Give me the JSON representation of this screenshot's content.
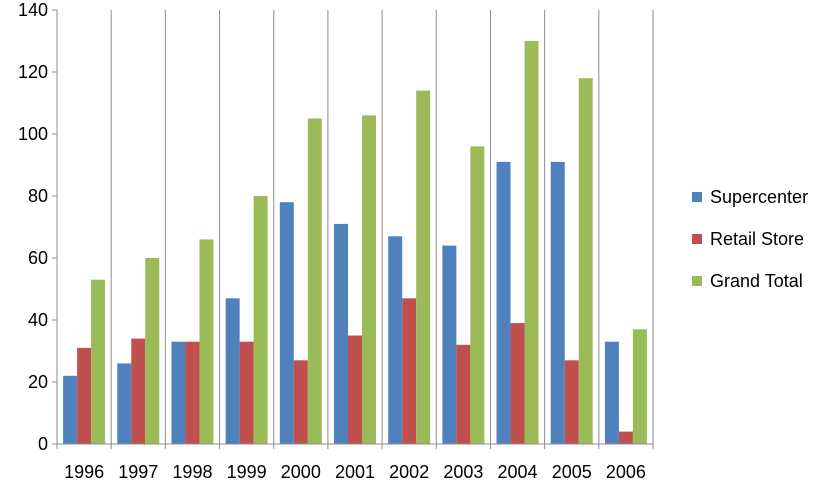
{
  "chart_data": {
    "type": "bar",
    "categories": [
      "1996",
      "1997",
      "1998",
      "1999",
      "2000",
      "2001",
      "2002",
      "2003",
      "2004",
      "2005",
      "2006"
    ],
    "series": [
      {
        "name": "Supercenter",
        "color": "#4F81BD",
        "values": [
          22,
          26,
          33,
          47,
          78,
          71,
          67,
          64,
          91,
          91,
          33
        ]
      },
      {
        "name": "Retail Store",
        "color": "#C0504D",
        "values": [
          31,
          34,
          33,
          33,
          27,
          35,
          47,
          32,
          39,
          27,
          4
        ]
      },
      {
        "name": "Grand Total",
        "color": "#9BBB59",
        "values": [
          53,
          60,
          66,
          80,
          105,
          106,
          114,
          96,
          130,
          118,
          37
        ]
      }
    ],
    "ylim": [
      0,
      140
    ],
    "yticks": [
      "0",
      "20",
      "40",
      "60",
      "80",
      "100",
      "120",
      "140"
    ],
    "grid": "vertical category separators",
    "legend_position": "right",
    "title": "",
    "xlabel": "",
    "ylabel": ""
  }
}
